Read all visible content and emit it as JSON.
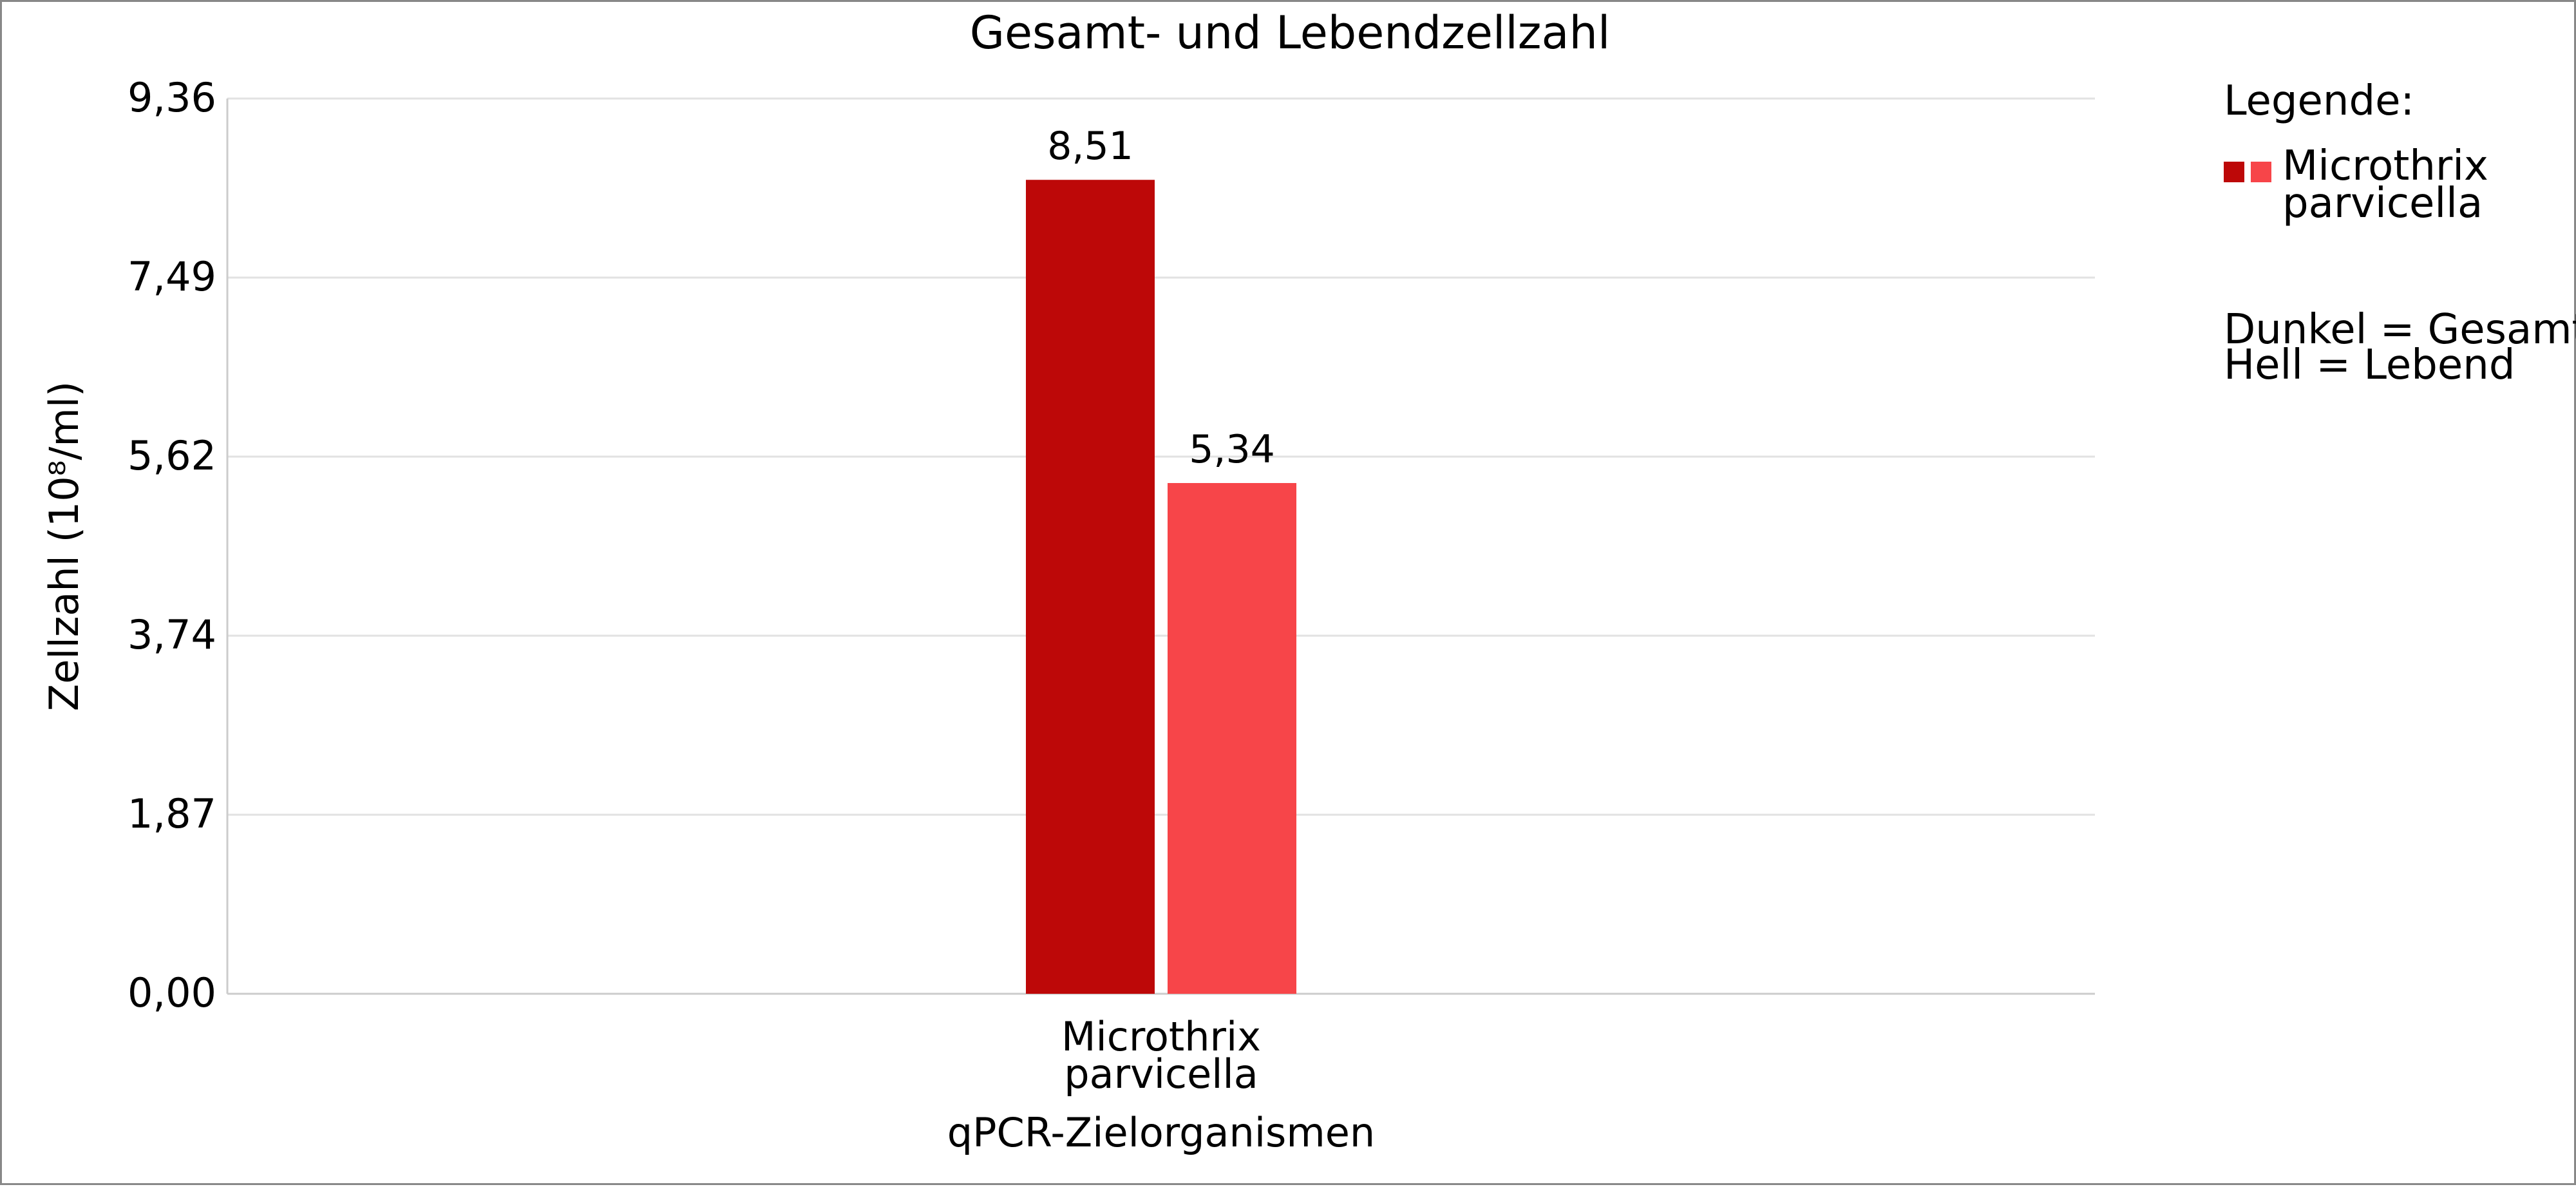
{
  "chart_data": {
    "type": "bar",
    "title": "Gesamt- und Lebendzellzahl",
    "xlabel": "qPCR-Zielorganismen",
    "ylabel": "Zellzahl (10⁸/ml)",
    "ylim": [
      0,
      9.36
    ],
    "yticks": [
      "0,00",
      "1,87",
      "3,74",
      "5,62",
      "7,49",
      "9,36"
    ],
    "grid": true,
    "categories": [
      [
        "Microthrix",
        "parvicella"
      ]
    ],
    "series": [
      {
        "values": [
          8.51
        ],
        "labels": [
          "8,51"
        ],
        "color": "#bd0808"
      },
      {
        "values": [
          5.34
        ],
        "labels": [
          "5,34"
        ],
        "color": "#f74549"
      }
    ],
    "legend": {
      "placement": "right",
      "title": "Legende:",
      "entries": [
        {
          "label": [
            "Microthrix",
            "parvicella"
          ],
          "colors": [
            "#bd0808",
            "#f74549"
          ]
        }
      ],
      "notes": [
        "Dunkel = Gesamt",
        "Hell = Lebend"
      ]
    }
  },
  "colors": {
    "grid": "#e2e2e2",
    "axis": "#cccccc",
    "text": "#000000",
    "frame": "#888888"
  }
}
